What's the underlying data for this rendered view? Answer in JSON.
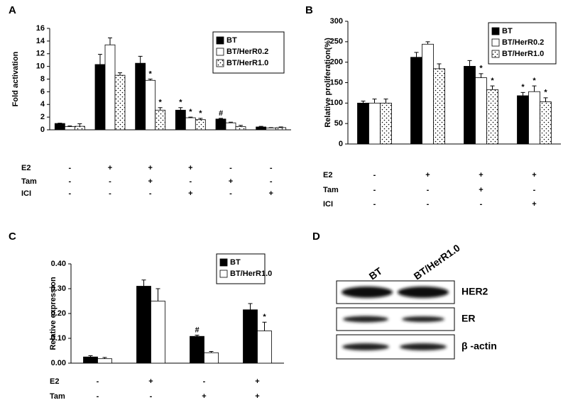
{
  "chart_data": [
    {
      "type": "bar",
      "panel": "A",
      "y_label": "Fold activation",
      "ylim": [
        0,
        16
      ],
      "yticks": [
        0,
        2,
        4,
        6,
        8,
        10,
        12,
        14,
        16
      ],
      "grid": false,
      "legend": "top-right",
      "series": [
        {
          "name": "BT",
          "color": "#000000",
          "values": [
            1.0,
            10.3,
            10.5,
            3.1,
            1.7,
            0.45
          ],
          "errors": [
            0.05,
            1.6,
            1.1,
            0.4,
            0.1,
            0.1
          ],
          "significance": [
            null,
            null,
            null,
            "*",
            "#",
            null
          ]
        },
        {
          "name": "BT/HerR0.2",
          "color": "#ffffff",
          "values": [
            0.5,
            13.4,
            7.8,
            1.9,
            1.1,
            0.3
          ],
          "errors": [
            0.1,
            1.1,
            0.2,
            0.1,
            0.1,
            0.05
          ],
          "significance": [
            null,
            null,
            "*",
            "*",
            null,
            null
          ]
        },
        {
          "name": "BT/HerR1.0",
          "color": "#ffffff",
          "pattern": "dots",
          "values": [
            0.55,
            8.6,
            3.1,
            1.6,
            0.5,
            0.35
          ],
          "errors": [
            0.4,
            0.4,
            0.4,
            0.2,
            0.2,
            0.1
          ],
          "significance": [
            null,
            null,
            "*",
            "*",
            null,
            null
          ]
        }
      ],
      "treatments": [
        {
          "name": "E2",
          "values": [
            "-",
            "+",
            "+",
            "+",
            "-",
            "-"
          ]
        },
        {
          "name": "Tam",
          "values": [
            "-",
            "-",
            "+",
            "-",
            "+",
            "-"
          ]
        },
        {
          "name": "ICI",
          "values": [
            "-",
            "-",
            "-",
            "+",
            "-",
            "+"
          ]
        }
      ]
    },
    {
      "type": "bar",
      "panel": "B",
      "y_label": "Relative proliferation(%)",
      "ylim": [
        0,
        300
      ],
      "yticks": [
        0,
        50,
        100,
        150,
        200,
        250,
        300
      ],
      "grid": false,
      "legend": "top-right",
      "series": [
        {
          "name": "BT",
          "color": "#000000",
          "values": [
            100,
            212,
            190,
            118
          ],
          "errors": [
            5,
            12,
            14,
            8
          ],
          "significance": [
            null,
            null,
            null,
            "*"
          ]
        },
        {
          "name": "BT/HerR0.2",
          "color": "#ffffff",
          "values": [
            100,
            244,
            162,
            128
          ],
          "errors": [
            10,
            6,
            10,
            14
          ],
          "significance": [
            null,
            null,
            "*",
            "*"
          ]
        },
        {
          "name": "BT/HerR1.0",
          "color": "#ffffff",
          "pattern": "dots",
          "values": [
            100,
            184,
            133,
            103
          ],
          "errors": [
            10,
            12,
            9,
            10
          ],
          "significance": [
            null,
            null,
            "*",
            "*"
          ]
        }
      ],
      "treatments": [
        {
          "name": "E2",
          "values": [
            "-",
            "+",
            "+",
            "+"
          ]
        },
        {
          "name": "Tam",
          "values": [
            "-",
            "-",
            "+",
            "-"
          ]
        },
        {
          "name": "ICI",
          "values": [
            "-",
            "-",
            "-",
            "+"
          ]
        }
      ]
    },
    {
      "type": "bar",
      "panel": "C",
      "y_label": "Relative expression",
      "ylim": [
        0,
        0.4
      ],
      "yticks": [
        {
          "value": 0,
          "label": "0.00"
        },
        {
          "value": 0.1,
          "label": "0.10"
        },
        {
          "value": 0.2,
          "label": "0.20"
        },
        {
          "value": 0.3,
          "label": "0.30"
        },
        {
          "value": 0.4,
          "label": "0.40"
        }
      ],
      "grid": false,
      "legend": "top-right",
      "series": [
        {
          "name": "BT",
          "color": "#000000",
          "values": [
            0.025,
            0.31,
            0.108,
            0.215
          ],
          "errors": [
            0.005,
            0.025,
            0.005,
            0.025
          ],
          "significance": [
            null,
            null,
            "#",
            null
          ]
        },
        {
          "name": "BT/HerR1.0",
          "color": "#ffffff",
          "values": [
            0.018,
            0.25,
            0.042,
            0.13
          ],
          "errors": [
            0.005,
            0.05,
            0.005,
            0.035
          ],
          "significance": [
            null,
            null,
            null,
            "*"
          ]
        }
      ],
      "treatments": [
        {
          "name": "E2",
          "values": [
            "-",
            "+",
            "-",
            "+"
          ]
        },
        {
          "name": "Tam",
          "values": [
            "-",
            "-",
            "+",
            "+"
          ]
        }
      ]
    }
  ],
  "blot": {
    "panel": "D",
    "lanes": [
      "BT",
      "BT/HerR1.0"
    ],
    "bands": [
      "HER2",
      "ER",
      "β -actin"
    ]
  }
}
